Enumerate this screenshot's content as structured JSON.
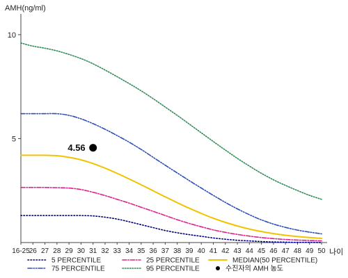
{
  "chart_data": {
    "type": "line",
    "ylabel": "AMH(ng/ml)",
    "xlabel": "나이",
    "ylim": [
      0,
      11
    ],
    "yticks": [
      5,
      10
    ],
    "x": [
      "16-25",
      "26",
      "27",
      "28",
      "29",
      "30",
      "31",
      "32",
      "33",
      "34",
      "35",
      "36",
      "37",
      "38",
      "39",
      "40",
      "41",
      "42",
      "43",
      "44",
      "45",
      "46",
      "47",
      "48",
      "49",
      "50"
    ],
    "series": [
      {
        "name": "5 PERCENTILE",
        "color": "#000080",
        "dash": "1.5,2.5",
        "values": [
          1.3,
          1.3,
          1.3,
          1.3,
          1.3,
          1.3,
          1.28,
          1.22,
          1.13,
          1.0,
          0.86,
          0.72,
          0.58,
          0.47,
          0.38,
          0.3,
          0.22,
          0.16,
          0.11,
          0.08,
          0.05,
          0.03,
          0.02,
          0.01,
          0.01,
          0.0
        ]
      },
      {
        "name": "25 PERCENTILE",
        "color": "#e0208a",
        "dash": "6,2,1.5,2",
        "values": [
          2.65,
          2.65,
          2.65,
          2.64,
          2.62,
          2.55,
          2.42,
          2.26,
          2.08,
          1.9,
          1.7,
          1.5,
          1.3,
          1.1,
          0.92,
          0.76,
          0.61,
          0.49,
          0.39,
          0.31,
          0.24,
          0.19,
          0.15,
          0.12,
          0.1,
          0.08
        ]
      },
      {
        "name": "75 PERCENTILE",
        "color": "#2a4fb5",
        "dash": "6,2,1.5,2,1.5,2",
        "values": [
          6.2,
          6.2,
          6.2,
          6.2,
          6.12,
          5.95,
          5.72,
          5.45,
          5.15,
          4.83,
          4.48,
          4.1,
          3.72,
          3.35,
          2.98,
          2.62,
          2.27,
          1.93,
          1.62,
          1.34,
          1.09,
          0.89,
          0.73,
          0.6,
          0.5,
          0.42
        ]
      },
      {
        "name": "95 PERCENTILE",
        "color": "#2e8b57",
        "dash": "1.5,2",
        "values": [
          9.6,
          9.45,
          9.35,
          9.22,
          9.05,
          8.85,
          8.6,
          8.3,
          7.98,
          7.65,
          7.3,
          6.92,
          6.52,
          6.12,
          5.7,
          5.28,
          4.86,
          4.45,
          4.05,
          3.68,
          3.33,
          3.02,
          2.75,
          2.5,
          2.27,
          2.08
        ]
      },
      {
        "name": "MEDIAN(50 PERCENTILE)",
        "color": "#f2c200",
        "dash": "",
        "values": [
          4.2,
          4.2,
          4.2,
          4.18,
          4.1,
          3.98,
          3.8,
          3.58,
          3.33,
          3.06,
          2.78,
          2.49,
          2.2,
          1.92,
          1.65,
          1.4,
          1.17,
          0.97,
          0.8,
          0.65,
          0.53,
          0.43,
          0.35,
          0.29,
          0.24,
          0.2
        ]
      }
    ],
    "point": {
      "name": "수진자의 AMH 농도",
      "x": "31",
      "y": 4.56,
      "label": "4.56"
    },
    "legend": {
      "placement": "bottom",
      "order": [
        "5 PERCENTILE",
        "25 PERCENTILE",
        "MEDIAN(50 PERCENTILE)",
        "75 PERCENTILE",
        "95 PERCENTILE",
        "수진자의 AMH 농도"
      ]
    }
  }
}
